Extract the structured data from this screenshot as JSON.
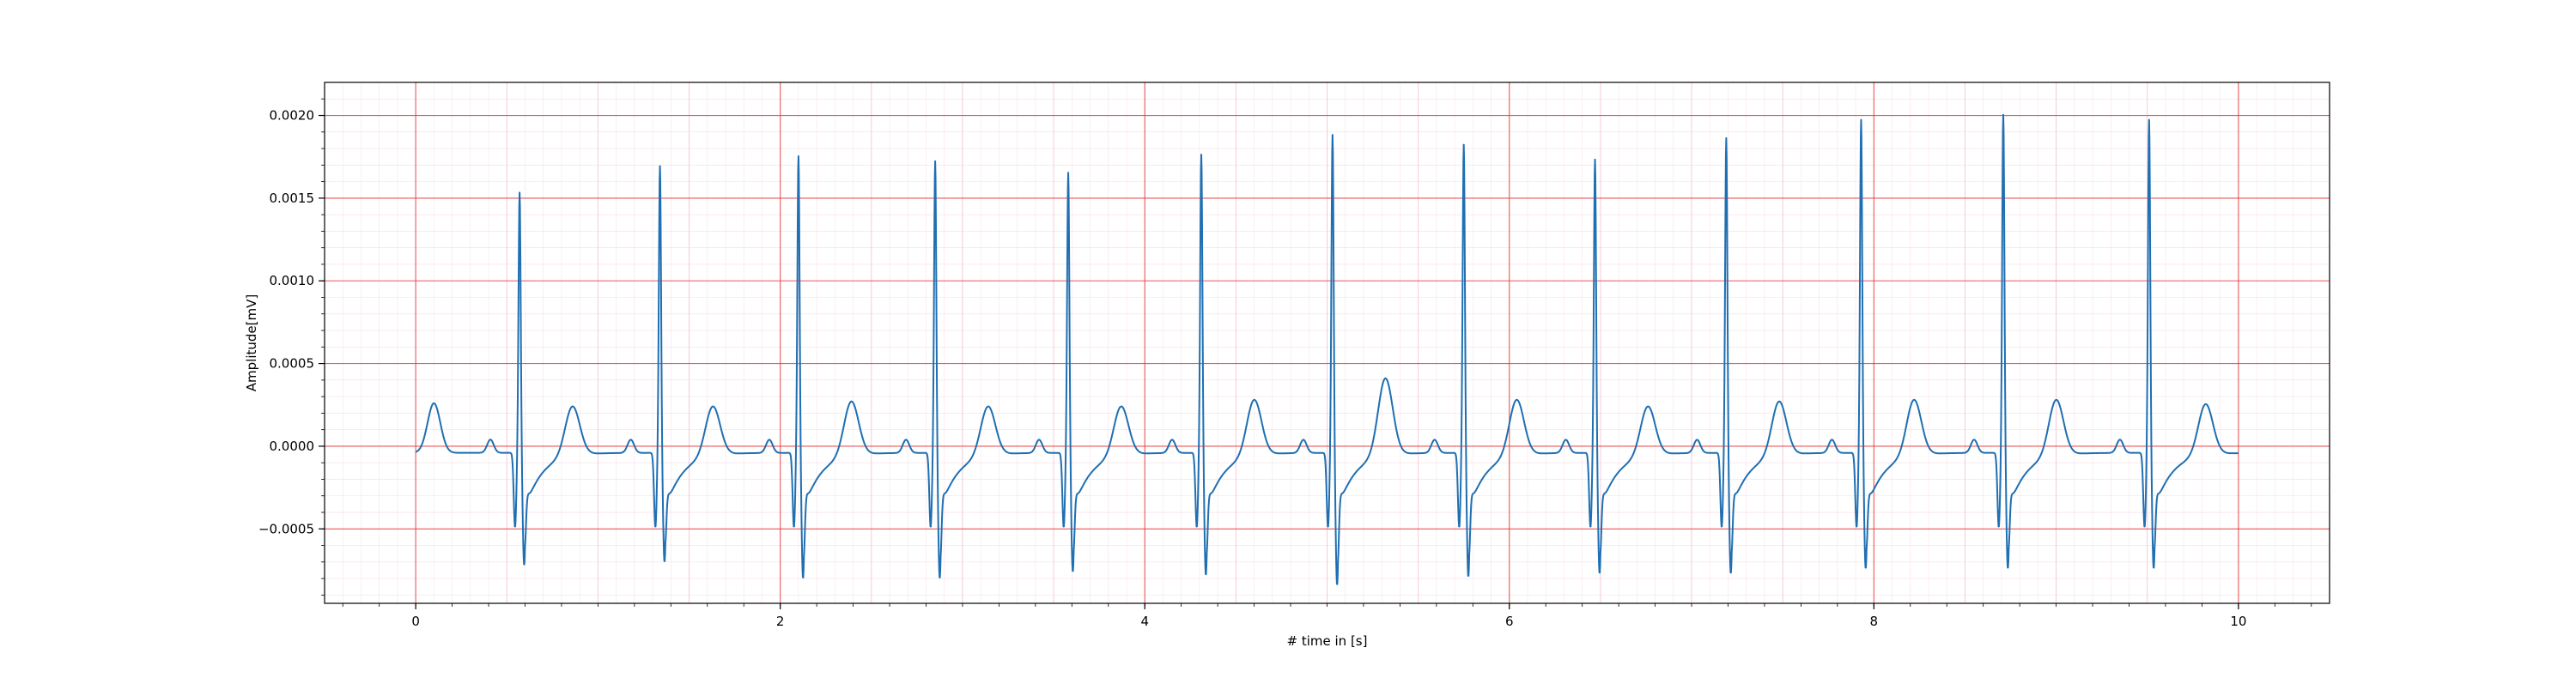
{
  "chart_data": {
    "type": "line",
    "title": "",
    "xlabel": "# time in [s]",
    "ylabel": "Amplitude[mV]",
    "xlim": [
      -0.5,
      10.5
    ],
    "ylim": [
      -0.00095,
      0.0022
    ],
    "grid": true,
    "grid_major_color": "#e8393a",
    "grid_minor_color": "#f6c5d6",
    "line_color": "#1f6fb2",
    "x_ticks": [
      0,
      2,
      4,
      6,
      8,
      10
    ],
    "x_tick_labels": [
      "0",
      "2",
      "4",
      "6",
      "8",
      "10"
    ],
    "y_ticks": [
      -0.0005,
      0.0,
      0.0005,
      0.001,
      0.0015,
      0.002
    ],
    "y_tick_labels": [
      "−0.0005",
      "0.0000",
      "0.0005",
      "0.0010",
      "0.0015",
      "0.0020"
    ],
    "series": [
      {
        "beats": [
          {
            "r": 0.57,
            "amp": 0.00158,
            "s": -0.00068,
            "t": 0.0003
          },
          {
            "r": 1.34,
            "amp": 0.00174,
            "s": -0.00066,
            "t": 0.0003
          },
          {
            "r": 2.1,
            "amp": 0.0018,
            "s": -0.00076,
            "t": 0.00033
          },
          {
            "r": 2.85,
            "amp": 0.00177,
            "s": -0.00076,
            "t": 0.0003
          },
          {
            "r": 3.58,
            "amp": 0.0017,
            "s": -0.00072,
            "t": 0.0003
          },
          {
            "r": 4.31,
            "amp": 0.00181,
            "s": -0.00074,
            "t": 0.00034
          },
          {
            "r": 5.03,
            "amp": 0.00193,
            "s": -0.0008,
            "t": 0.00047
          },
          {
            "r": 5.75,
            "amp": 0.00187,
            "s": -0.00075,
            "t": 0.00034
          },
          {
            "r": 6.47,
            "amp": 0.00178,
            "s": -0.00073,
            "t": 0.0003
          },
          {
            "r": 7.19,
            "amp": 0.00191,
            "s": -0.00073,
            "t": 0.00033
          },
          {
            "r": 7.93,
            "amp": 0.00202,
            "s": -0.0007,
            "t": 0.00034
          },
          {
            "r": 8.71,
            "amp": 0.00205,
            "s": -0.0007,
            "t": 0.00034
          },
          {
            "r": 9.51,
            "amp": 0.00202,
            "s": -0.0007,
            "t": 0.00027
          }
        ],
        "first_t_wave": {
          "x": 0.1,
          "amp": 0.0003
        },
        "last_t_wave": {
          "x": 9.82,
          "amp": 0.00031
        },
        "x_start": 0.0,
        "x_end": 10.0
      }
    ]
  }
}
